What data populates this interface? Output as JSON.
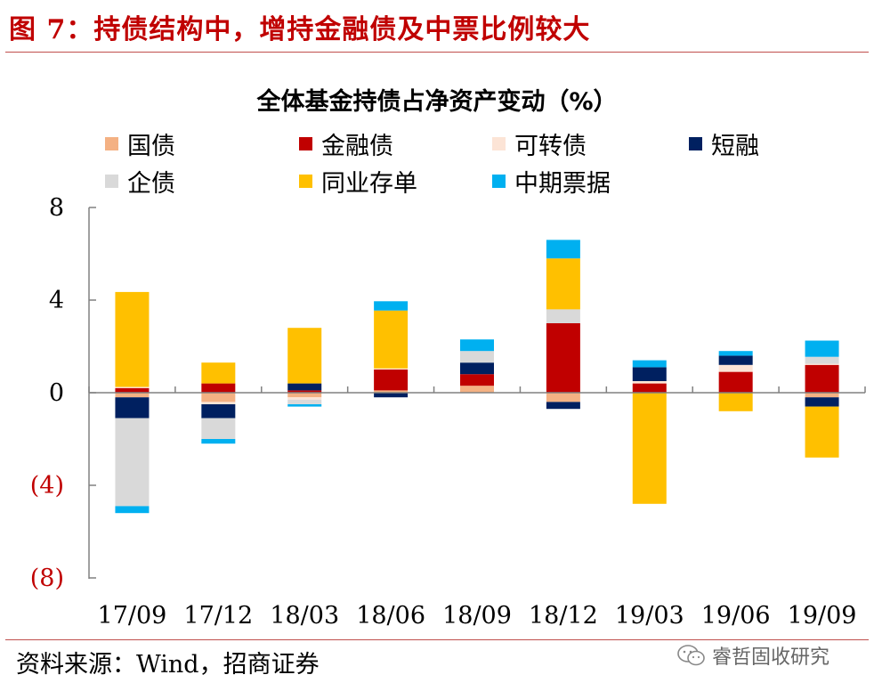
{
  "header": {
    "figure_title": "图 7：持债结构中，增持金融债及中票比例较大"
  },
  "chart_data": {
    "type": "bar",
    "stacked": true,
    "title": "全体基金持债占净资产变动（%）",
    "categories": [
      "17/09",
      "17/12",
      "18/03",
      "18/06",
      "18/09",
      "18/12",
      "19/03",
      "19/06",
      "19/09"
    ],
    "yticks": [
      "8",
      "4",
      "0",
      "(4)",
      "(8)"
    ],
    "ytick_values": [
      8,
      4,
      0,
      -4,
      -8
    ],
    "ylim": [
      -8,
      8
    ],
    "negative_tick_color": "#c00000",
    "legend_position": "top",
    "series": [
      {
        "name": "国债",
        "color": "#f4b183",
        "values": [
          -0.2,
          -0.4,
          -0.2,
          0.1,
          0.3,
          -0.4,
          0.0,
          0.0,
          -0.2
        ]
      },
      {
        "name": "金融债",
        "color": "#c00000",
        "values": [
          0.2,
          0.4,
          0.1,
          0.9,
          0.5,
          3.0,
          0.4,
          0.9,
          1.2
        ]
      },
      {
        "name": "可转债",
        "color": "#fce4d6",
        "values": [
          0.05,
          -0.1,
          -0.1,
          0.05,
          0.0,
          0.0,
          0.1,
          0.3,
          0.05
        ]
      },
      {
        "name": "短融",
        "color": "#002060",
        "values": [
          -0.9,
          -0.6,
          0.3,
          -0.2,
          0.5,
          -0.3,
          0.6,
          0.4,
          -0.4
        ]
      },
      {
        "name": "企债",
        "color": "#d9d9d9",
        "values": [
          -3.8,
          -0.9,
          -0.2,
          0.0,
          0.5,
          0.6,
          0.0,
          0.0,
          0.3
        ]
      },
      {
        "name": "同业存单",
        "color": "#ffc000",
        "values": [
          4.1,
          0.9,
          2.4,
          2.5,
          0.0,
          2.2,
          -4.8,
          -0.8,
          -2.2
        ]
      },
      {
        "name": "中期票据",
        "color": "#00b0f0",
        "values": [
          -0.3,
          -0.2,
          -0.1,
          0.4,
          0.5,
          0.8,
          0.3,
          0.2,
          0.7
        ]
      }
    ]
  },
  "footer": {
    "source": "资料来源：Wind，招商证券",
    "watermark": "睿哲固收研究"
  }
}
